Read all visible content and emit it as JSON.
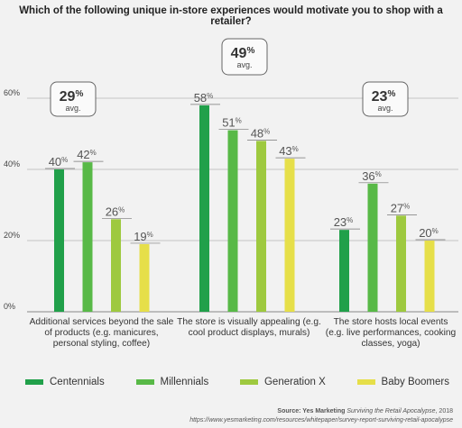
{
  "title": "Which of the following unique in-store experiences would motivate you to shop with a retailer?",
  "chart_data": {
    "type": "bar",
    "title": "Which of the following unique in-store experiences would motivate you to shop with a retailer?",
    "categories": [
      "Additional services beyond the sale of products (e.g. manicures, personal styling, coffee)",
      "The store is visually appealing (e.g. cool product displays, murals)",
      "The store hosts local events (e.g. live performances, cooking classes, yoga)"
    ],
    "series": [
      {
        "name": "Centennials",
        "values": [
          40,
          58,
          23
        ],
        "color": "#21a04a"
      },
      {
        "name": "Millennials",
        "values": [
          42,
          51,
          36
        ],
        "color": "#58b947"
      },
      {
        "name": "Generation X",
        "values": [
          26,
          48,
          27
        ],
        "color": "#9ec93f"
      },
      {
        "name": "Baby Boomers",
        "values": [
          19,
          43,
          20
        ],
        "color": "#e6df49"
      }
    ],
    "averages": [
      {
        "value": "29%",
        "label": "avg."
      },
      {
        "value": "49%",
        "label": "avg."
      },
      {
        "value": "23%",
        "label": "avg."
      }
    ],
    "y_ticks": [
      "0%",
      "20%",
      "40%",
      "60%"
    ],
    "ylim": [
      0,
      60
    ],
    "grid": true,
    "legend": "bottom"
  },
  "category_labels": [
    "Additional services beyond the sale of products (e.g. manicures, personal styling, coffee)",
    "The store is visually appealing (e.g. cool product displays, murals)",
    "The store hosts local events (e.g. live performances, cooking classes, yoga)"
  ],
  "legend": [
    {
      "name": "Centennials",
      "color": "#21a04a"
    },
    {
      "name": "Millennials",
      "color": "#58b947"
    },
    {
      "name": "Generation X",
      "color": "#9ec93f"
    },
    {
      "name": "Baby Boomers",
      "color": "#e6df49"
    }
  ],
  "source": {
    "prefix": "Source: Yes Marketing",
    "title": "Surviving the Retail Apocalypse",
    "year": ", 2018",
    "url": "https://www.yesmarketing.com/resources/whitepaper/survey-report-surviving-retail-apocalypse"
  }
}
